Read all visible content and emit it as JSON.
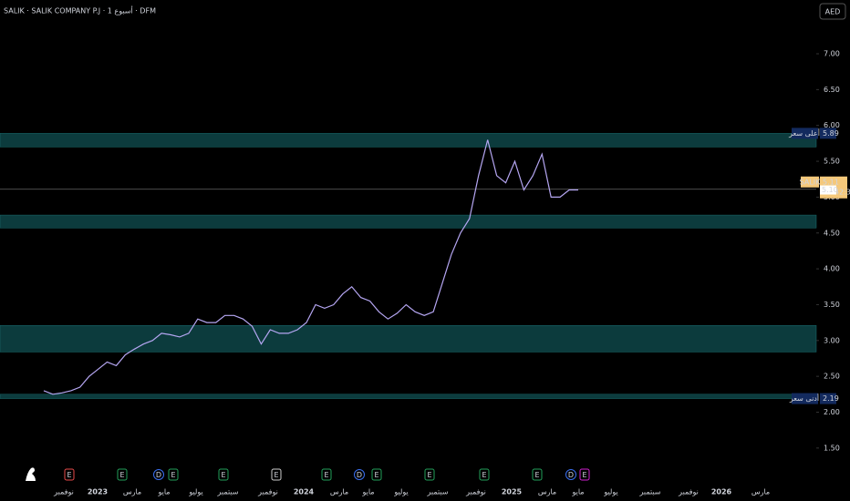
{
  "chart_data": {
    "type": "line",
    "title": "SALIK · SALIK COMPANY P.J · 1 أسبوع · DFM",
    "currency": "AED",
    "symbol": "SALIK",
    "color": "#b5a6f2",
    "ylim": [
      1.0,
      7.75
    ],
    "yticks": [
      {
        "value": 7,
        "label": "7.00"
      },
      {
        "value": 6.5,
        "label": "6.50"
      },
      {
        "value": 6,
        "label": "6.00"
      },
      {
        "value": 5.5,
        "label": "5.50"
      },
      {
        "value": 5,
        "label": "5.00"
      },
      {
        "value": 4.5,
        "label": "4.50"
      },
      {
        "value": 4,
        "label": "4.00"
      },
      {
        "value": 3.5,
        "label": "3.50"
      },
      {
        "value": 3,
        "label": "3.00"
      },
      {
        "value": 2.5,
        "label": "2.50"
      },
      {
        "value": 2,
        "label": "2.00"
      },
      {
        "value": 1.5,
        "label": "1.50"
      }
    ],
    "xlabels": [
      "نوفمبر",
      "2023",
      "مارس",
      "مايو",
      "يوليو",
      "سبتمبر",
      "نوفمبر",
      "2024",
      "مارس",
      "مايو",
      "يوليو",
      "سبتمبر",
      "نوفمبر",
      "2025",
      "مارس",
      "مايو",
      "يوليو",
      "سبتمبر",
      "نوفمبر",
      "2026",
      "مارس"
    ],
    "values": [
      2.3,
      2.25,
      2.27,
      2.3,
      2.35,
      2.5,
      2.6,
      2.7,
      2.65,
      2.8,
      2.88,
      2.95,
      3.0,
      3.1,
      3.08,
      3.05,
      3.1,
      3.3,
      3.25,
      3.25,
      3.35,
      3.35,
      3.3,
      3.2,
      2.95,
      3.15,
      3.1,
      3.1,
      3.15,
      3.25,
      3.5,
      3.45,
      3.5,
      3.65,
      3.75,
      3.6,
      3.55,
      3.4,
      3.3,
      3.38,
      3.5,
      3.4,
      3.35,
      3.4,
      3.8,
      4.2,
      4.5,
      4.7,
      5.3,
      5.8,
      5.3,
      5.2,
      5.5,
      5.1,
      5.3,
      5.6,
      5.0,
      5.0,
      5.1,
      5.1
    ],
    "zones": [
      {
        "top": 5.89,
        "bottom": 5.7
      },
      {
        "top": 4.75,
        "bottom": 4.57
      },
      {
        "top": 3.21,
        "bottom": 2.84
      },
      {
        "top": 2.25,
        "bottom": 2.19
      }
    ],
    "high_label": "أعلى سعر",
    "high": 5.89,
    "low_label": "أدنى سعر",
    "low": 2.19,
    "last_price": 5.11,
    "countdown": "03:42:31",
    "prev_price": {
      "value": 5.1,
      "label": "5.10"
    },
    "events": [
      "E",
      "E",
      "D",
      "E",
      "E",
      "E",
      "E",
      "D",
      "E",
      "E",
      "E",
      "E",
      "D",
      "E"
    ]
  }
}
